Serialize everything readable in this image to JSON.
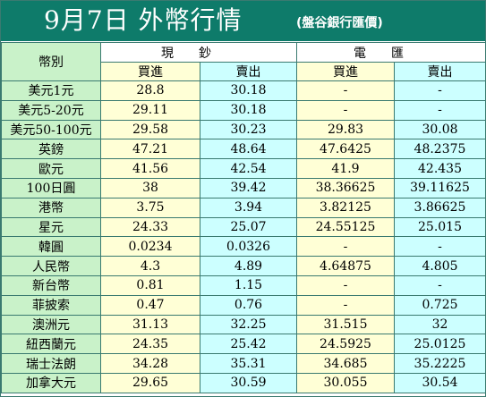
{
  "header": {
    "title": "9月7日 外幣行情",
    "source": "(盤谷銀行匯價)"
  },
  "table": {
    "currency_header": "幣別",
    "cash_header": "現鈔",
    "tt_header": "電匯",
    "buy_label": "買進",
    "sell_label": "賣出",
    "rows": [
      {
        "currency": "美元1元",
        "cash_buy": "28.8",
        "cash_sell": "30.18",
        "tt_buy": "-",
        "tt_sell": "-"
      },
      {
        "currency": "美元5-20元",
        "cash_buy": "29.11",
        "cash_sell": "30.18",
        "tt_buy": "-",
        "tt_sell": "-"
      },
      {
        "currency": "美元50-100元",
        "cash_buy": "29.58",
        "cash_sell": "30.23",
        "tt_buy": "29.83",
        "tt_sell": "30.08"
      },
      {
        "currency": "英鎊",
        "cash_buy": "47.21",
        "cash_sell": "48.64",
        "tt_buy": "47.6425",
        "tt_sell": "48.2375"
      },
      {
        "currency": "歐元",
        "cash_buy": "41.56",
        "cash_sell": "42.54",
        "tt_buy": "41.9",
        "tt_sell": "42.435"
      },
      {
        "currency": "100日圓",
        "cash_buy": "38",
        "cash_sell": "39.42",
        "tt_buy": "38.36625",
        "tt_sell": "39.11625"
      },
      {
        "currency": "港幣",
        "cash_buy": "3.75",
        "cash_sell": "3.94",
        "tt_buy": "3.82125",
        "tt_sell": "3.86625"
      },
      {
        "currency": "星元",
        "cash_buy": "24.33",
        "cash_sell": "25.07",
        "tt_buy": "24.55125",
        "tt_sell": "25.015"
      },
      {
        "currency": "韓圓",
        "cash_buy": "0.0234",
        "cash_sell": "0.0326",
        "tt_buy": "-",
        "tt_sell": "-"
      },
      {
        "currency": "人民幣",
        "cash_buy": "4.3",
        "cash_sell": "4.89",
        "tt_buy": "4.64875",
        "tt_sell": "4.805"
      },
      {
        "currency": "新台幣",
        "cash_buy": "0.81",
        "cash_sell": "1.15",
        "tt_buy": "-",
        "tt_sell": "-"
      },
      {
        "currency": "菲披索",
        "cash_buy": "0.47",
        "cash_sell": "0.76",
        "tt_buy": "-",
        "tt_sell": "0.725"
      },
      {
        "currency": "澳洲元",
        "cash_buy": "31.13",
        "cash_sell": "32.25",
        "tt_buy": "31.515",
        "tt_sell": "32"
      },
      {
        "currency": "紐西蘭元",
        "cash_buy": "24.35",
        "cash_sell": "25.42",
        "tt_buy": "24.5925",
        "tt_sell": "25.0125"
      },
      {
        "currency": "瑞士法朗",
        "cash_buy": "34.28",
        "cash_sell": "35.31",
        "tt_buy": "34.685",
        "tt_sell": "35.2225"
      },
      {
        "currency": "加拿大元",
        "cash_buy": "29.65",
        "cash_sell": "30.59",
        "tt_buy": "30.055",
        "tt_sell": "30.54"
      }
    ]
  },
  "colors": {
    "title_bar": "#0e7b6a",
    "currency_column": "#c9f2c9",
    "buy_column": "#ffffd6",
    "sell_column": "#ccffff",
    "grid": "#3a7a70"
  }
}
